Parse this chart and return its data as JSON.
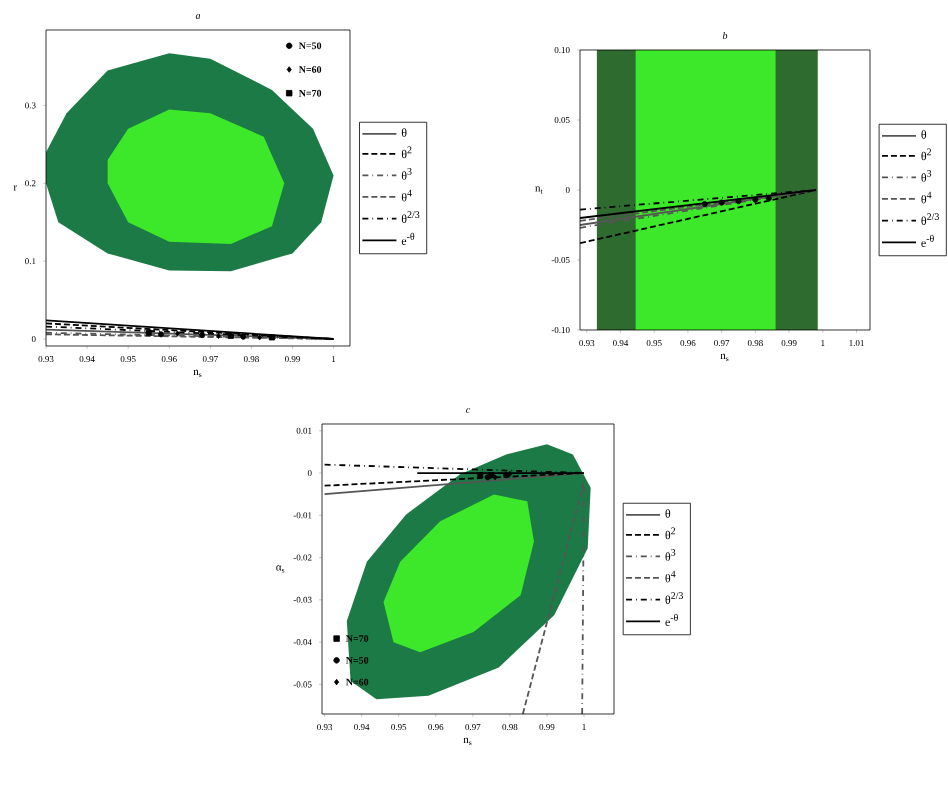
{
  "chart_data": [
    {
      "type": "line",
      "title": "a",
      "xlabel": "n$_{s}$",
      "ylabel": "r",
      "legend": "right",
      "xlim": [
        0.93,
        1.004
      ],
      "ylim": [
        -0.009,
        0.397
      ],
      "xticks": [
        0.93,
        0.94,
        0.95,
        0.96,
        0.97,
        0.98,
        0.99,
        1
      ],
      "yticks": [
        0,
        0.1,
        0.2,
        0.3
      ],
      "series": [
        {
          "type": "area",
          "color": "#1b7a45",
          "x": [
            0.93,
            0.933,
            0.945,
            0.96,
            0.975,
            0.99,
            0.997,
            1.0,
            0.995,
            0.985,
            0.97,
            0.96,
            0.945,
            0.935,
            0.93
          ],
          "values": [
            0.2,
            0.15,
            0.11,
            0.088,
            0.087,
            0.11,
            0.15,
            0.21,
            0.27,
            0.32,
            0.36,
            0.367,
            0.345,
            0.29,
            0.24
          ]
        },
        {
          "type": "area",
          "color": "#3de82a",
          "x": [
            0.945,
            0.95,
            0.96,
            0.975,
            0.985,
            0.988,
            0.983,
            0.97,
            0.96,
            0.95,
            0.945
          ],
          "values": [
            0.2,
            0.15,
            0.125,
            0.122,
            0.145,
            0.2,
            0.26,
            0.29,
            0.295,
            0.27,
            0.23
          ]
        },
        {
          "type": "line",
          "name": "θ",
          "color": "#555555",
          "line_style": "solid",
          "x": [
            0.93,
            1
          ],
          "values": [
            0.012,
            0
          ]
        },
        {
          "type": "line",
          "name": "θ$^{2}$",
          "color": "#000000",
          "line_style": "dashed",
          "x": [
            0.93,
            1
          ],
          "values": [
            0.02,
            0
          ]
        },
        {
          "type": "line",
          "name": "θ$^{3}$",
          "color": "#555555",
          "line_style": "dashdot",
          "x": [
            0.93,
            1
          ],
          "values": [
            0.008,
            0
          ]
        },
        {
          "type": "line",
          "name": "θ$^{4}$",
          "color": "#555555",
          "line_style": "dashed",
          "x": [
            0.93,
            1
          ],
          "values": [
            0.006,
            0
          ]
        },
        {
          "type": "line",
          "name": "θ$^{2/3}$",
          "color": "#000000",
          "line_style": "dashdot",
          "x": [
            0.93,
            1
          ],
          "values": [
            0.016,
            0
          ]
        },
        {
          "type": "line",
          "name": "e$^{-θ}$",
          "color": "#000000",
          "line_style": "solid",
          "x": [
            0.93,
            1
          ],
          "values": [
            0.024,
            0
          ]
        },
        {
          "type": "scatter",
          "name": "N=50",
          "color": "#000000",
          "marker": "circle",
          "x": [
            0.958,
            0.968,
            0.978
          ],
          "values": [
            0.006,
            0.005,
            0.003
          ]
        },
        {
          "type": "scatter",
          "name": "N=60",
          "color": "#000000",
          "marker": "diamond",
          "x": [
            0.962,
            0.972,
            0.982
          ],
          "values": [
            0.007,
            0.004,
            0.002
          ]
        },
        {
          "type": "scatter",
          "name": "N=70",
          "color": "#000000",
          "marker": "square",
          "x": [
            0.955,
            0.975,
            0.985
          ],
          "values": [
            0.008,
            0.004,
            0.002
          ]
        }
      ]
    },
    {
      "type": "line",
      "title": "b",
      "xlabel": "n$_{s}$",
      "ylabel": "n$_{t}$",
      "legend": "right",
      "xlim": [
        0.928,
        1.014
      ],
      "ylim": [
        -0.1,
        0.1
      ],
      "xticks": [
        0.93,
        0.94,
        0.95,
        0.96,
        0.97,
        0.98,
        0.99,
        1,
        1.01
      ],
      "yticks": [
        {
          "value": -0.1,
          "label": "-0.10"
        },
        -0.05,
        0,
        0.05,
        {
          "value": 0.1,
          "label": "0.10"
        }
      ],
      "bands": [
        {
          "axis": "x",
          "from": 0.933,
          "to": 0.9985,
          "color": "#2e6b2e"
        },
        {
          "axis": "x",
          "from": 0.9445,
          "to": 0.986,
          "color": "#3de82a"
        }
      ],
      "series": [
        {
          "type": "line",
          "name": "θ",
          "color": "#555555",
          "line_style": "solid",
          "x": [
            0.928,
            0.998
          ],
          "values": [
            -0.025,
            0
          ]
        },
        {
          "type": "line",
          "name": "θ$^{2}$",
          "color": "#000000",
          "line_style": "dashed",
          "x": [
            0.928,
            0.998
          ],
          "values": [
            -0.038,
            0
          ]
        },
        {
          "type": "line",
          "name": "θ$^{3}$",
          "color": "#555555",
          "line_style": "dashdot",
          "x": [
            0.928,
            0.998
          ],
          "values": [
            -0.027,
            0
          ]
        },
        {
          "type": "line",
          "name": "θ$^{4}$",
          "color": "#555555",
          "line_style": "dashed",
          "x": [
            0.928,
            0.998
          ],
          "values": [
            -0.022,
            0
          ]
        },
        {
          "type": "line",
          "name": "θ$^{2/3}$",
          "color": "#000000",
          "line_style": "dashdot",
          "x": [
            0.928,
            0.998
          ],
          "values": [
            -0.014,
            0
          ]
        },
        {
          "type": "line",
          "name": "e$^{-θ}$",
          "color": "#000000",
          "line_style": "solid",
          "x": [
            0.928,
            0.998
          ],
          "values": [
            -0.02,
            0
          ]
        },
        {
          "type": "scatter",
          "color": "#000000",
          "marker": "circle",
          "x": [
            0.965,
            0.97,
            0.975,
            0.98,
            0.984
          ],
          "values": [
            -0.01,
            -0.009,
            -0.008,
            -0.007,
            -0.006
          ]
        }
      ]
    },
    {
      "type": "line",
      "title": "c",
      "xlabel": "n$_{s}$",
      "ylabel": "α$_{s}$",
      "legend": "right",
      "xlim": [
        0.9293,
        1.0081
      ],
      "ylim": [
        -0.057,
        0.0116
      ],
      "xticks": [
        0.93,
        0.94,
        0.95,
        0.96,
        0.97,
        0.98,
        0.99,
        1
      ],
      "yticks": [
        -0.05,
        -0.04,
        -0.03,
        -0.02,
        -0.01,
        0,
        0.01
      ],
      "series": [
        {
          "type": "area",
          "color": "#1b7a45",
          "x": [
            0.936,
            0.937,
            0.944,
            0.958,
            0.977,
            0.992,
            1.001,
            1.0018,
            0.997,
            0.99,
            0.979,
            0.9666,
            0.952,
            0.9414
          ],
          "values": [
            -0.035,
            -0.0492,
            -0.0535,
            -0.0527,
            -0.046,
            -0.0336,
            -0.0178,
            -0.0035,
            0.0044,
            0.0068,
            0.0044,
            -0.0003,
            -0.0098,
            -0.021
          ]
        },
        {
          "type": "area",
          "color": "#3de82a",
          "x": [
            0.9459,
            0.9486,
            0.9558,
            0.9702,
            0.9829,
            0.9865,
            0.9847,
            0.9757,
            0.9612,
            0.9504
          ],
          "values": [
            -0.0305,
            -0.04,
            -0.0424,
            -0.0376,
            -0.0289,
            -0.0162,
            -0.0067,
            -0.0051,
            -0.0114,
            -0.021
          ]
        },
        {
          "type": "line",
          "name": "θ",
          "color": "#555555",
          "line_style": "solid",
          "x": [
            0.93,
            1
          ],
          "values": [
            -0.005,
            0
          ]
        },
        {
          "type": "line",
          "name": "θ$^{2}$",
          "color": "#000000",
          "line_style": "dashed",
          "x": [
            0.93,
            1
          ],
          "values": [
            -0.003,
            0
          ]
        },
        {
          "type": "line",
          "name": "θ$^{3}$",
          "color": "#555555",
          "line_style": "dashdot",
          "x": [
            0.9995,
            1
          ],
          "values": [
            -0.057,
            -0.001
          ]
        },
        {
          "type": "line",
          "name": "θ$^{4}$",
          "color": "#555555",
          "line_style": "dashed",
          "x": [
            0.9835,
            1
          ],
          "values": [
            -0.057,
            -0.002
          ]
        },
        {
          "type": "line",
          "name": "θ$^{2/3}$",
          "color": "#000000",
          "line_style": "dashdot",
          "x": [
            0.93,
            1
          ],
          "values": [
            0.002,
            0
          ]
        },
        {
          "type": "line",
          "name": "e$^{-θ}$",
          "color": "#000000",
          "line_style": "solid",
          "x": [
            0.955,
            1
          ],
          "values": [
            0.0,
            0
          ]
        },
        {
          "type": "scatter",
          "name": "N=70",
          "color": "#000000",
          "marker": "square",
          "x": [
            0.972,
            0.975
          ],
          "values": [
            -0.0005,
            -0.0005
          ]
        },
        {
          "type": "scatter",
          "name": "N=50",
          "color": "#000000",
          "marker": "circle",
          "x": [
            0.974,
            0.979
          ],
          "values": [
            -0.001,
            -0.0005
          ]
        },
        {
          "type": "scatter",
          "name": "N=60",
          "color": "#000000",
          "marker": "diamond",
          "x": [
            0.976,
            0.98
          ],
          "values": [
            -0.001,
            -0.0002
          ]
        }
      ]
    }
  ]
}
